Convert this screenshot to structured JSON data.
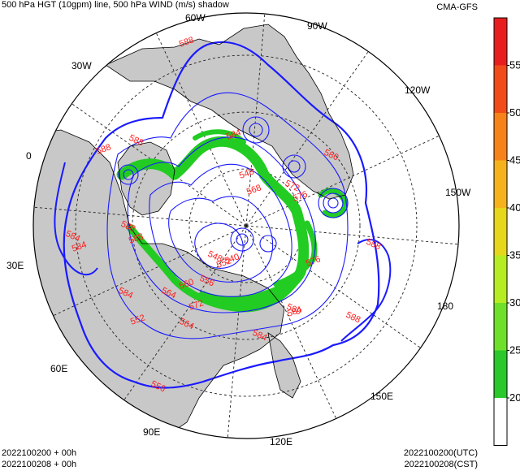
{
  "header": {
    "title": "500 hPa HGT (10gpm) line, 500 hPa WIND (m/s) shadow",
    "model": "CMA-GFS"
  },
  "footer": {
    "left_line1": "2022100200 + 00h",
    "left_line2": "2022100208 + 00h",
    "right_line1": "2022100200(UTC)",
    "right_line2": "2022100208(CST)"
  },
  "map": {
    "projection": "north polar stereographic",
    "longitude_labels": [
      "60W",
      "90W",
      "30W",
      "120W",
      "0",
      "150W",
      "30E",
      "180",
      "60E",
      "150E",
      "90E",
      "120E"
    ],
    "contour_labels": [
      "588",
      "588",
      "588",
      "584",
      "584",
      "580",
      "576",
      "572",
      "568",
      "564",
      "560",
      "556",
      "552",
      "548",
      "540",
      "588",
      "584",
      "580",
      "576",
      "588",
      "584",
      "588",
      "588",
      "584",
      "572",
      "564",
      "552",
      "556",
      "548",
      "584"
    ],
    "colors": {
      "land": "#c8c8c8",
      "ocean": "#ffffff",
      "height_contour": "#1a1aff",
      "contour_label": "#ff1a1a",
      "coastline": "#000000",
      "wind_fill": "#22cc22"
    }
  },
  "colorbar": {
    "ticks": [
      "55",
      "50",
      "45",
      "40",
      "35",
      "30",
      "25",
      "20"
    ],
    "colors": [
      "#e81e1e",
      "#f04b18",
      "#f7821a",
      "#f5b21c",
      "#e6d61c",
      "#b6ec22",
      "#6fe02a",
      "#2ac82a",
      "#ffffff"
    ]
  }
}
